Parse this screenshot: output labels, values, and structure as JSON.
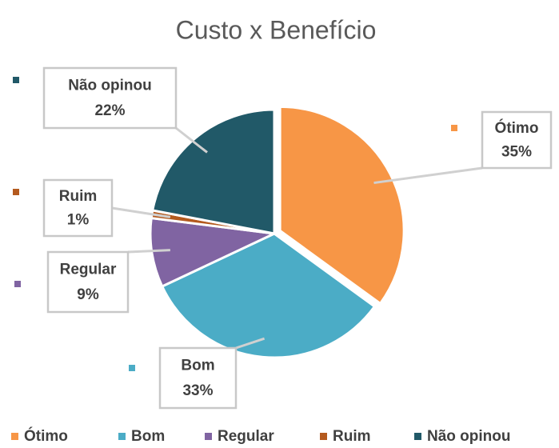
{
  "chart_data": {
    "type": "pie",
    "title": "Custo x Benefício",
    "categories": [
      "Ótimo",
      "Bom",
      "Regular",
      "Ruim",
      "Não opinou"
    ],
    "values": [
      35,
      33,
      9,
      1,
      22
    ],
    "value_labels": [
      "35%",
      "33%",
      "9%",
      "1%",
      "22%"
    ],
    "colors": [
      "#f79646",
      "#4bacc6",
      "#8064a2",
      "#b45a1e",
      "#215968"
    ],
    "legend": "bottom"
  }
}
